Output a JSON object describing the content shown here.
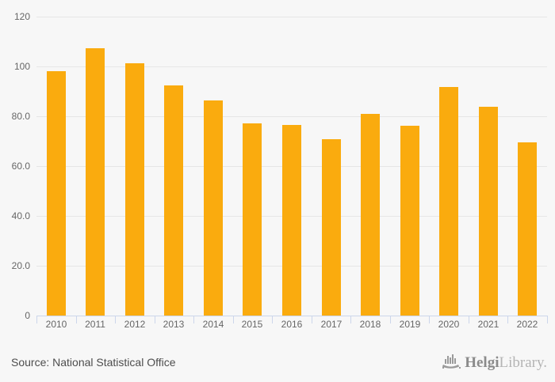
{
  "chart_data": {
    "type": "bar",
    "title": "",
    "xlabel": "",
    "ylabel": "",
    "categories": [
      "2010",
      "2011",
      "2012",
      "2013",
      "2014",
      "2015",
      "2016",
      "2017",
      "2018",
      "2019",
      "2020",
      "2021",
      "2022"
    ],
    "values": [
      98.0,
      107.2,
      101.3,
      92.4,
      86.3,
      77.2,
      76.6,
      70.8,
      81.0,
      76.2,
      91.7,
      83.9,
      69.5
    ],
    "ylim": [
      0,
      120
    ],
    "yticks": [
      {
        "value": 120,
        "label": "120"
      },
      {
        "value": 100,
        "label": "100"
      },
      {
        "value": 80,
        "label": "80.0"
      },
      {
        "value": 60,
        "label": "60.0"
      },
      {
        "value": 40,
        "label": "40.0"
      },
      {
        "value": 20,
        "label": "20.0"
      },
      {
        "value": 0,
        "label": "0"
      }
    ],
    "grid": true,
    "legend": "none",
    "bar_color": "#FAAB0E",
    "gridline_color": "#e6e6e6",
    "axis_color": "#ccd6eb",
    "label_color": "#666666",
    "background_color": "#f7f7f7"
  },
  "footer": {
    "source": "Source: National Statistical Office",
    "logo": {
      "icon": "helgi-ship-barchart-icon",
      "brand_bold": "Helgi",
      "brand_light": "Library."
    }
  }
}
